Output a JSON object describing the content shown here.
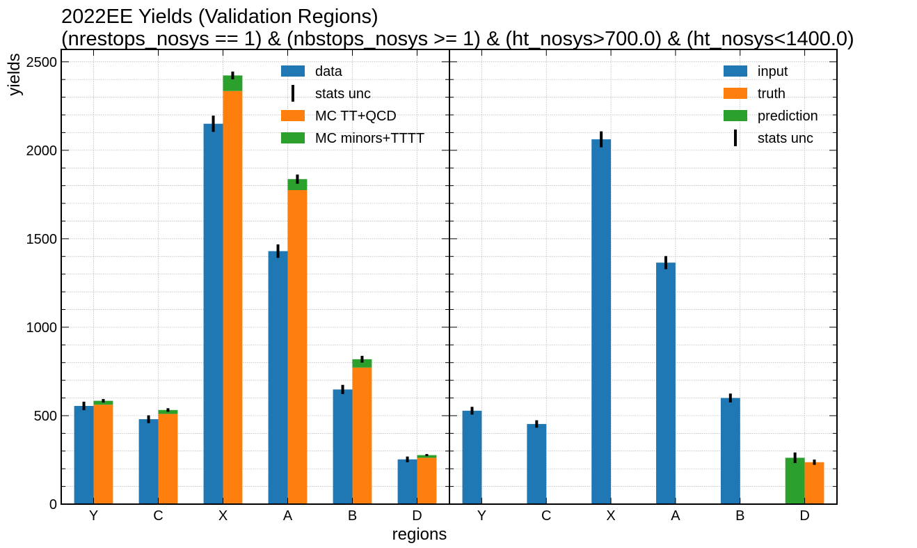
{
  "figure": {
    "title_line1": "2022EE Yields (Validation Regions)",
    "title_line2": "(nrestops_nosys == 1) & (nbstops_nosys >= 1) & (ht_nosys>700.0) & (ht_nosys<1400.0)",
    "ylabel": "yields",
    "xlabel": "regions"
  },
  "colors": {
    "blue": "#1f77b4",
    "orange": "#ff7f0e",
    "green": "#2ca02c",
    "error": "#000000",
    "grid": "#b0b0b0"
  },
  "chart_data": [
    {
      "type": "bar",
      "panel": "left",
      "categories": [
        "Y",
        "C",
        "X",
        "A",
        "B",
        "D"
      ],
      "ylabel": "yields",
      "xlabel": "regions",
      "ylim": [
        0,
        2570
      ],
      "yticks": [
        0,
        500,
        1000,
        1500,
        2000,
        2500
      ],
      "grid": true,
      "legend_position": "top-right",
      "legend": [
        "data",
        "stats unc",
        "MC TT+QCD",
        "MC minors+TTTT"
      ],
      "series": [
        {
          "name": "data",
          "values": [
            555,
            480,
            2150,
            1430,
            648,
            253
          ],
          "errors": [
            24,
            22,
            46,
            38,
            26,
            16
          ]
        },
        {
          "name": "MC TT+QCD",
          "values": [
            562,
            510,
            2335,
            1775,
            772,
            262
          ]
        },
        {
          "name": "MC minors+TTTT",
          "values": [
            22,
            22,
            88,
            62,
            47,
            15
          ]
        }
      ],
      "mc_total_errors": [
        10,
        10,
        22,
        26,
        19,
        6
      ]
    },
    {
      "type": "bar",
      "panel": "right",
      "categories": [
        "Y",
        "C",
        "X",
        "A",
        "B",
        "D"
      ],
      "ylim": [
        0,
        2570
      ],
      "grid": true,
      "legend_position": "top-right",
      "legend": [
        "input",
        "truth",
        "prediction",
        "stats unc"
      ],
      "series": [
        {
          "name": "input",
          "values": [
            528,
            453,
            2062,
            1365,
            600,
            null
          ],
          "errors": [
            22,
            21,
            45,
            37,
            25,
            null
          ]
        },
        {
          "name": "truth",
          "values": [
            null,
            null,
            null,
            null,
            null,
            237
          ],
          "errors": [
            null,
            null,
            null,
            null,
            null,
            15
          ]
        },
        {
          "name": "prediction",
          "values": [
            null,
            null,
            null,
            null,
            null,
            262
          ],
          "errors": [
            null,
            null,
            null,
            null,
            null,
            30
          ]
        }
      ]
    }
  ]
}
